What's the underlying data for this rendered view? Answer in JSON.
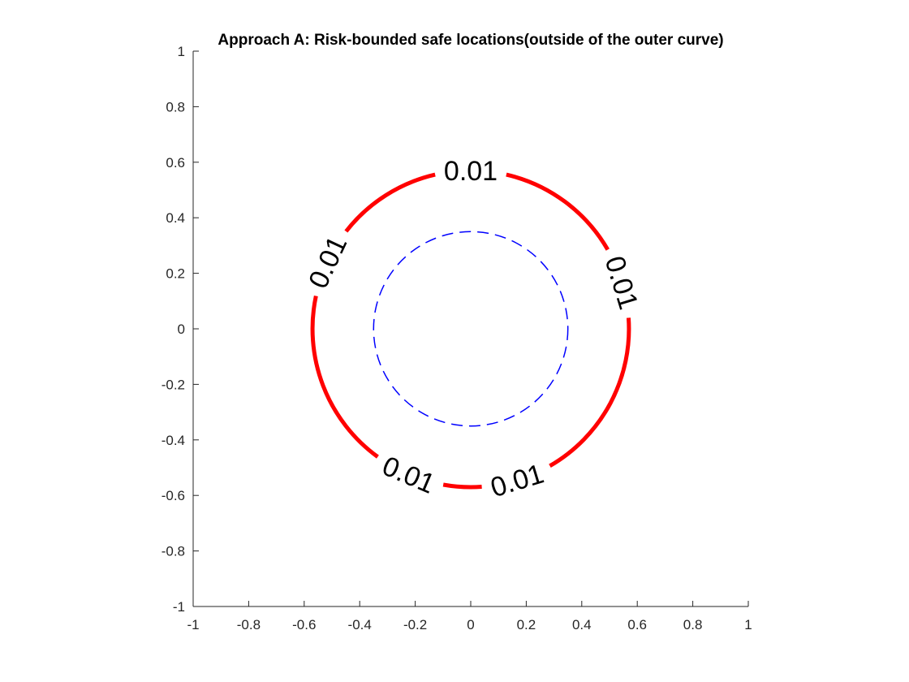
{
  "chart_data": {
    "type": "contour",
    "title": "Approach A: Risk-bounded safe locations(outside of the outer curve)",
    "xlabel": "",
    "ylabel": "",
    "xlim": [
      -1,
      1
    ],
    "ylim": [
      -1,
      1
    ],
    "xticks": [
      -1,
      -0.8,
      -0.6,
      -0.4,
      -0.2,
      0,
      0.2,
      0.4,
      0.6,
      0.8,
      1
    ],
    "yticks": [
      -1,
      -0.8,
      -0.6,
      -0.4,
      -0.2,
      0,
      0.2,
      0.4,
      0.6,
      0.8,
      1
    ],
    "grid": false,
    "series": [
      {
        "kind": "contour",
        "level": 0.01,
        "center": [
          0,
          0
        ],
        "radius": 0.57,
        "color": "#ff0000",
        "line_style": "solid",
        "labels": [
          {
            "text": "0.01",
            "angle_deg": 90
          },
          {
            "text": "0.01",
            "angle_deg": 155
          },
          {
            "text": "0.01",
            "angle_deg": 17
          },
          {
            "text": "0.01",
            "angle_deg": 247
          },
          {
            "text": "0.01",
            "angle_deg": 287
          }
        ]
      },
      {
        "kind": "circle",
        "center": [
          0,
          0
        ],
        "radius": 0.35,
        "color": "#0000ff",
        "line_style": "dashed"
      }
    ]
  }
}
